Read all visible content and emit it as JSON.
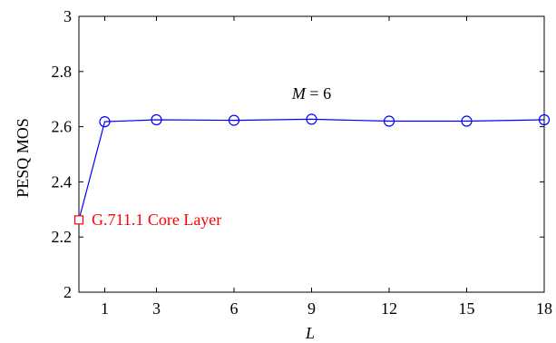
{
  "chart_data": {
    "type": "line",
    "xlabel": "L",
    "ylabel": "PESQ MOS",
    "xlim": [
      0,
      18
    ],
    "ylim": [
      2,
      3
    ],
    "xticks": [
      1,
      3,
      6,
      9,
      12,
      15,
      18
    ],
    "yticks": [
      2,
      2.2,
      2.4,
      2.6,
      2.8,
      3
    ],
    "ytick_labels": [
      "2",
      "2.2",
      "2.4",
      "2.6",
      "2.8",
      "3"
    ],
    "grid": false,
    "series": [
      {
        "color": "#0000ff",
        "marker": "circle",
        "x": [
          0,
          1,
          3,
          6,
          9,
          12,
          15,
          18
        ],
        "y": [
          2.262,
          2.618,
          2.625,
          2.623,
          2.627,
          2.62,
          2.62,
          2.625
        ],
        "marker_x": [
          1,
          3,
          6,
          9,
          12,
          15,
          18
        ],
        "marker_y": [
          2.618,
          2.625,
          2.623,
          2.627,
          2.62,
          2.62,
          2.625
        ]
      }
    ],
    "core_point": {
      "x": 0,
      "y": 2.262,
      "marker": "square",
      "color": "#ff0000"
    },
    "annotations": {
      "m_label": {
        "var": "M",
        "text": " = 6",
        "x": 9,
        "y": 2.72
      },
      "core_label": {
        "text": "G.711.1 Core Layer",
        "color": "#ff0000"
      }
    }
  }
}
